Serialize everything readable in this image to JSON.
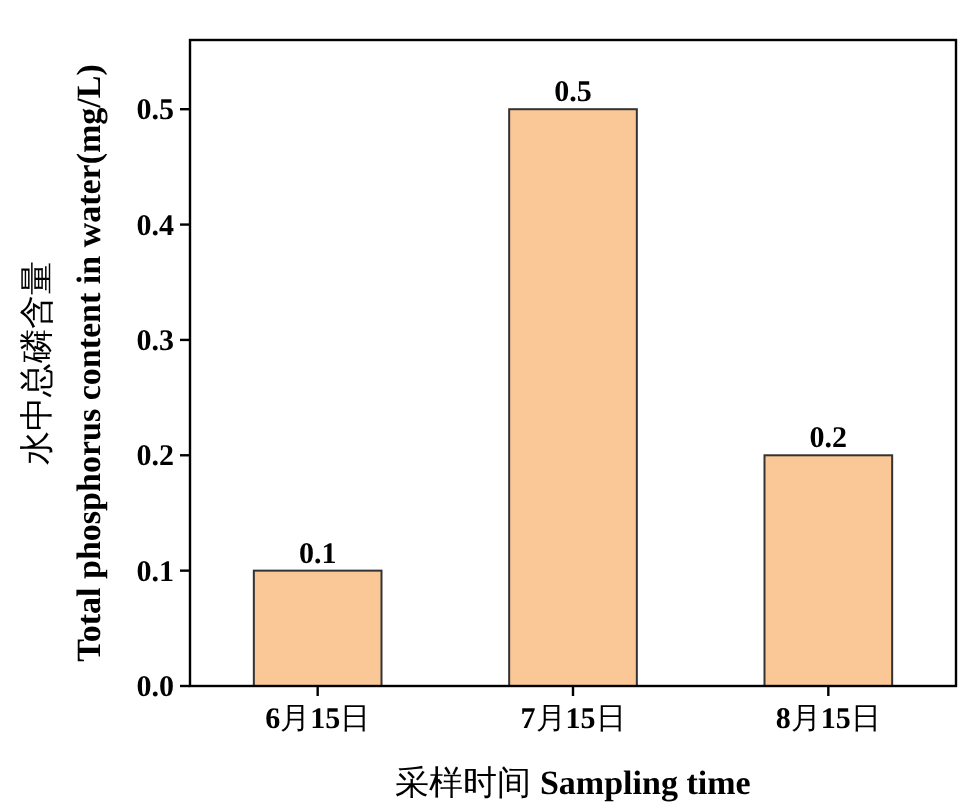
{
  "chart_data": {
    "type": "bar",
    "xlabel": "采样时间 Sampling time",
    "ylabel": "水中总磷含量\nTotal phosphorus content in water(mg/L)",
    "categories": [
      "6月15日",
      "7月15日",
      "8月15日"
    ],
    "values": [
      0.1,
      0.5,
      0.2
    ],
    "color": "#fac897",
    "ylim": [
      0,
      0.56
    ],
    "yticks": [
      {
        "value": 0,
        "label": "0.0"
      },
      {
        "value": 0.1,
        "label": "0.1"
      },
      {
        "value": 0.2,
        "label": "0.2"
      },
      {
        "value": 0.3,
        "label": "0.3"
      },
      {
        "value": 0.4,
        "label": "0.4"
      },
      {
        "value": 0.5,
        "label": "0.5"
      }
    ],
    "data_labels": true
  }
}
